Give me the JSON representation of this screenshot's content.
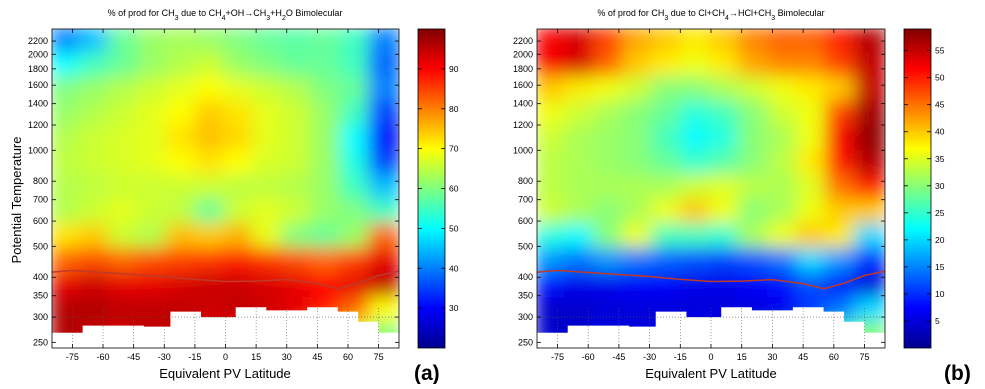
{
  "chart_data": [
    {
      "type": "heatmap",
      "title_parts": [
        "% of prod for CH",
        "3",
        " due to CH",
        "4",
        "+OH",
        "→",
        "CH",
        "3",
        "+H",
        "2",
        "O Bimolecular"
      ],
      "xlabel": "Equivalent PV Latitude",
      "ylabel": "Potential Temperature",
      "x_ticks": [
        "-75",
        "-60",
        "-45",
        "-30",
        "-15",
        "0",
        "15",
        "30",
        "45",
        "60",
        "75"
      ],
      "y_ticks": [
        "250",
        "300",
        "350",
        "400",
        "500",
        "600",
        "700",
        "800",
        "1000",
        "1200",
        "1400",
        "1600",
        "1800",
        "2000",
        "2200"
      ],
      "xlim": [
        -85,
        85
      ],
      "ylim": [
        240,
        2400
      ],
      "y_scale": "log",
      "colorbar_ticks": [
        "30",
        "40",
        "50",
        "60",
        "70",
        "80",
        "90"
      ],
      "colorbar_range": [
        20,
        100
      ],
      "panel_label": "(a)",
      "tropopause_line": {
        "x": [
          -85,
          -75,
          -60,
          -45,
          -30,
          -15,
          0,
          15,
          30,
          45,
          55,
          65,
          75,
          85
        ],
        "y": [
          415,
          420,
          414,
          408,
          402,
          394,
          388,
          389,
          393,
          382,
          368,
          383,
          405,
          418
        ]
      },
      "field": [
        [
          40,
          45,
          58,
          62,
          63,
          62,
          60,
          58,
          57,
          58,
          55,
          40
        ],
        [
          50,
          55,
          58,
          62,
          64,
          66,
          62,
          60,
          58,
          58,
          55,
          38
        ],
        [
          60,
          62,
          64,
          66,
          68,
          70,
          68,
          66,
          64,
          60,
          58,
          40
        ],
        [
          62,
          64,
          66,
          68,
          70,
          74,
          72,
          68,
          66,
          62,
          55,
          35
        ],
        [
          64,
          66,
          67,
          68,
          72,
          75,
          73,
          68,
          66,
          62,
          50,
          30
        ],
        [
          65,
          66,
          67,
          68,
          70,
          72,
          70,
          67,
          66,
          62,
          52,
          35
        ],
        [
          64,
          65,
          66,
          66,
          66,
          66,
          65,
          65,
          64,
          62,
          55,
          45
        ],
        [
          64,
          66,
          68,
          66,
          65,
          58,
          66,
          68,
          66,
          62,
          60,
          55
        ],
        [
          72,
          74,
          66,
          64,
          75,
          74,
          76,
          68,
          60,
          58,
          62,
          82
        ],
        [
          82,
          84,
          82,
          84,
          85,
          86,
          88,
          86,
          84,
          82,
          85,
          92
        ],
        [
          92,
          94,
          92,
          92,
          93,
          94,
          94,
          93,
          92,
          90,
          92,
          95
        ],
        [
          96,
          96,
          95,
          95,
          95,
          94,
          95,
          94,
          92,
          88,
          82,
          70
        ],
        [
          96,
          95,
          94,
          95,
          94,
          92,
          90,
          88,
          86,
          80,
          70,
          60
        ]
      ]
    },
    {
      "type": "heatmap",
      "title_parts": [
        "% of prod for CH",
        "3",
        " due to Cl+CH",
        "4",
        "→",
        "HCl+CH",
        "3",
        " Bimolecular"
      ],
      "xlabel": "Equivalent PV Latitude",
      "ylabel": "",
      "x_ticks": [
        "-75",
        "-60",
        "-45",
        "-30",
        "-15",
        "0",
        "15",
        "30",
        "45",
        "60",
        "75"
      ],
      "y_ticks": [
        "250",
        "300",
        "350",
        "400",
        "500",
        "600",
        "700",
        "800",
        "1000",
        "1200",
        "1400",
        "1600",
        "1800",
        "2000",
        "2200"
      ],
      "xlim": [
        -85,
        85
      ],
      "ylim": [
        240,
        2400
      ],
      "y_scale": "log",
      "colorbar_ticks": [
        "5",
        "10",
        "15",
        "20",
        "25",
        "30",
        "35",
        "40",
        "45",
        "50",
        "55"
      ],
      "colorbar_range": [
        0,
        59
      ],
      "panel_label": "(b)",
      "tropopause_line": {
        "x": [
          -85,
          -75,
          -60,
          -45,
          -30,
          -15,
          0,
          15,
          30,
          45,
          55,
          65,
          75,
          85
        ],
        "y": [
          415,
          420,
          414,
          408,
          402,
          394,
          388,
          389,
          393,
          382,
          368,
          383,
          405,
          418
        ]
      },
      "field": [
        [
          52,
          54,
          48,
          42,
          40,
          38,
          40,
          44,
          46,
          46,
          50,
          56
        ],
        [
          52,
          54,
          46,
          40,
          38,
          36,
          38,
          42,
          44,
          44,
          48,
          55
        ],
        [
          40,
          38,
          36,
          34,
          30,
          30,
          32,
          34,
          36,
          38,
          40,
          55
        ],
        [
          36,
          34,
          32,
          30,
          28,
          24,
          26,
          30,
          34,
          36,
          48,
          57
        ],
        [
          34,
          32,
          31,
          30,
          26,
          22,
          24,
          30,
          32,
          36,
          52,
          58
        ],
        [
          33,
          32,
          31,
          30,
          28,
          25,
          27,
          30,
          33,
          38,
          50,
          56
        ],
        [
          33,
          32,
          32,
          32,
          32,
          34,
          35,
          33,
          32,
          35,
          45,
          50
        ],
        [
          34,
          32,
          30,
          32,
          36,
          40,
          36,
          30,
          32,
          36,
          40,
          40
        ],
        [
          24,
          22,
          30,
          36,
          26,
          26,
          25,
          32,
          36,
          40,
          38,
          20
        ],
        [
          16,
          14,
          16,
          14,
          13,
          12,
          11,
          12,
          14,
          20,
          16,
          10
        ],
        [
          8,
          6,
          6,
          7,
          7,
          6,
          6,
          7,
          8,
          12,
          8,
          5
        ],
        [
          4,
          4,
          5,
          5,
          5,
          5,
          5,
          5,
          6,
          10,
          14,
          20
        ],
        [
          4,
          4,
          5,
          5,
          6,
          7,
          8,
          10,
          12,
          18,
          25,
          30
        ]
      ]
    }
  ]
}
